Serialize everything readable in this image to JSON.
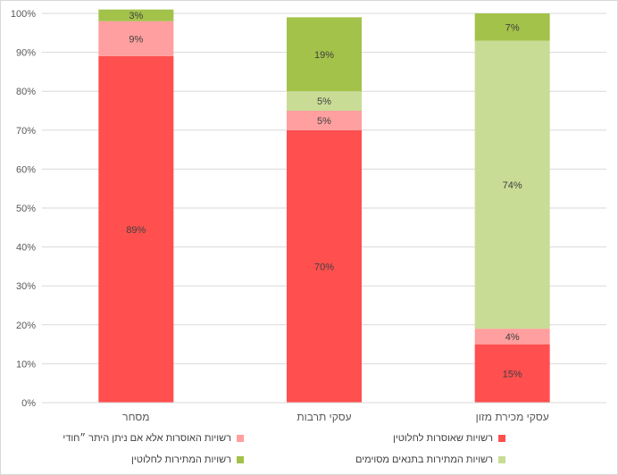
{
  "chart_data": {
    "type": "bar",
    "stacked": true,
    "categories": [
      "מסחר",
      "עסקי תרבות",
      "עסקי מכירת מזון"
    ],
    "series": [
      {
        "name": "רשויות שאוסרות לחלוטין",
        "values": [
          89,
          70,
          15
        ],
        "labels": [
          "89%",
          "70%",
          "15%"
        ],
        "color": "#ff4f4f"
      },
      {
        "name": "רשויות האוסרות אלא אם ניתן היתר ״חודי",
        "values": [
          9,
          5,
          4
        ],
        "labels": [
          "9%",
          "5%",
          "4%"
        ],
        "color": "#ff9f9f"
      },
      {
        "name": "רשויות המתירות בתנאים מסוימים",
        "values": [
          0,
          5,
          74
        ],
        "labels": [
          "",
          "5%",
          "74%"
        ],
        "color": "#c9dc95"
      },
      {
        "name": "רשויות המתירות לחלוטין",
        "values": [
          3,
          19,
          7
        ],
        "labels": [
          "3%",
          "19%",
          "7%"
        ],
        "color": "#a3c24a"
      }
    ],
    "ylim": [
      0,
      100
    ],
    "yticks": [
      "0%",
      "10%",
      "20%",
      "30%",
      "40%",
      "50%",
      "60%",
      "70%",
      "80%",
      "90%",
      "100%"
    ],
    "grid": true,
    "legend_position": "bottom"
  }
}
